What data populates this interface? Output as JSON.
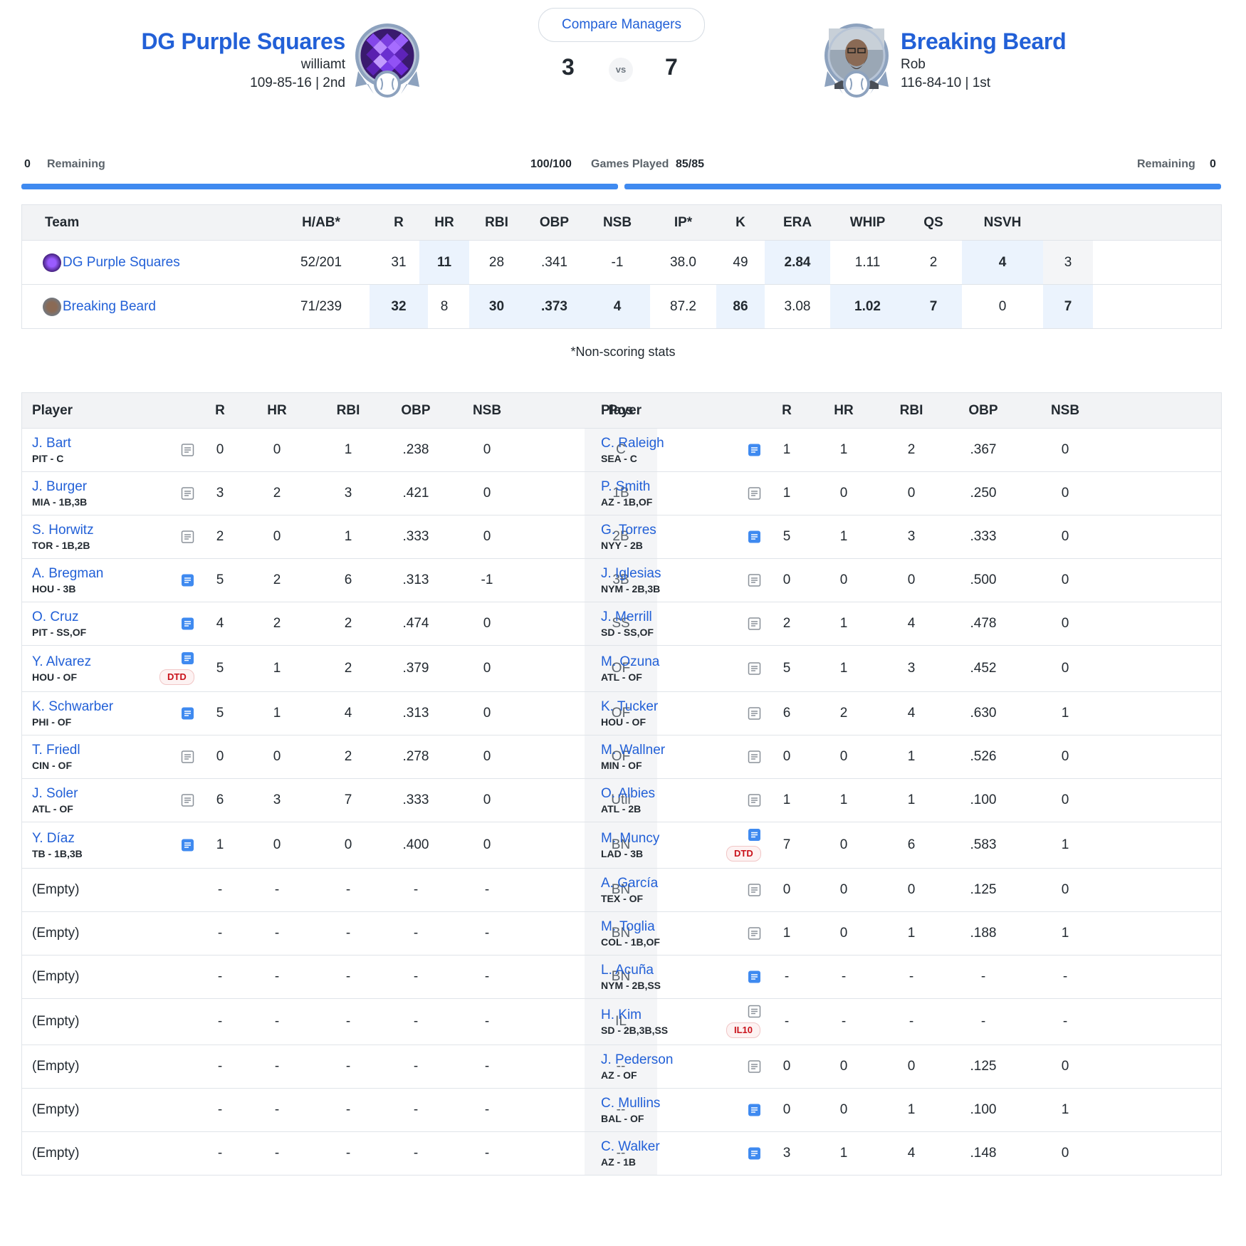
{
  "header": {
    "compare_label": "Compare Managers",
    "vs_label": "vs",
    "left": {
      "name": "DG Purple Squares",
      "manager": "williamt",
      "record": "109-85-16 | 2nd",
      "score": "3"
    },
    "right": {
      "name": "Breaking Beard",
      "manager": "Rob",
      "record": "116-84-10 | 1st",
      "score": "7"
    }
  },
  "progress": {
    "left_remaining_value": "0",
    "remaining_label": "Remaining",
    "left_played": "100/100",
    "games_played_label": "Games Played",
    "right_played": "85/85",
    "right_remaining_value": "0"
  },
  "summary": {
    "headers": [
      "Team",
      "H/AB*",
      "R",
      "HR",
      "RBI",
      "OBP",
      "NSB",
      "IP*",
      "K",
      "ERA",
      "WHIP",
      "QS",
      "NSVH",
      ""
    ],
    "rows": [
      {
        "team": "DG Purple Squares",
        "values": [
          "52/201",
          "31",
          "11",
          "28",
          ".341",
          "-1",
          "38.0",
          "49",
          "2.84",
          "1.11",
          "2",
          "4",
          "3"
        ]
      },
      {
        "team": "Breaking Beard",
        "values": [
          "71/239",
          "32",
          "8",
          "30",
          ".373",
          "4",
          "87.2",
          "86",
          "3.08",
          "1.02",
          "7",
          "0",
          "7"
        ]
      }
    ],
    "footnote": "*Non-scoring stats"
  },
  "roster": {
    "headers": {
      "player": "Player",
      "r": "R",
      "hr": "HR",
      "rbi": "RBI",
      "obp": "OBP",
      "nsb": "NSB",
      "pos": "Pos"
    },
    "empty_label": "(Empty)",
    "rows": [
      {
        "pos": "C",
        "left": {
          "name": "J. Bart",
          "meta": "PIT - C",
          "stats": [
            "0",
            "0",
            "1",
            ".238",
            "0"
          ]
        },
        "right": {
          "name": "C. Raleigh",
          "meta": "SEA - C",
          "stats": [
            "1",
            "1",
            "2",
            ".367",
            "0"
          ]
        }
      },
      {
        "pos": "1B",
        "left": {
          "name": "J. Burger",
          "meta": "MIA - 1B,3B",
          "stats": [
            "3",
            "2",
            "3",
            ".421",
            "0"
          ]
        },
        "right": {
          "name": "P. Smith",
          "meta": "AZ - 1B,OF",
          "stats": [
            "1",
            "0",
            "0",
            ".250",
            "0"
          ]
        }
      },
      {
        "pos": "2B",
        "left": {
          "name": "S. Horwitz",
          "meta": "TOR - 1B,2B",
          "stats": [
            "2",
            "0",
            "1",
            ".333",
            "0"
          ]
        },
        "right": {
          "name": "G. Torres",
          "meta": "NYY - 2B",
          "stats": [
            "5",
            "1",
            "3",
            ".333",
            "0"
          ]
        }
      },
      {
        "pos": "3B",
        "left": {
          "name": "A. Bregman",
          "meta": "HOU - 3B",
          "stats": [
            "5",
            "2",
            "6",
            ".313",
            "-1"
          ]
        },
        "right": {
          "name": "J. Iglesias",
          "meta": "NYM - 2B,3B",
          "stats": [
            "0",
            "0",
            "0",
            ".500",
            "0"
          ]
        }
      },
      {
        "pos": "SS",
        "left": {
          "name": "O. Cruz",
          "meta": "PIT - SS,OF",
          "stats": [
            "4",
            "2",
            "2",
            ".474",
            "0"
          ]
        },
        "right": {
          "name": "J. Merrill",
          "meta": "SD - SS,OF",
          "stats": [
            "2",
            "1",
            "4",
            ".478",
            "0"
          ]
        }
      },
      {
        "pos": "OF",
        "left": {
          "name": "Y. Alvarez",
          "meta": "HOU - OF",
          "tag": "DTD",
          "stats": [
            "5",
            "1",
            "2",
            ".379",
            "0"
          ]
        },
        "right": {
          "name": "M. Ozuna",
          "meta": "ATL - OF",
          "stats": [
            "5",
            "1",
            "3",
            ".452",
            "0"
          ]
        }
      },
      {
        "pos": "OF",
        "left": {
          "name": "K. Schwarber",
          "meta": "PHI - OF",
          "stats": [
            "5",
            "1",
            "4",
            ".313",
            "0"
          ]
        },
        "right": {
          "name": "K. Tucker",
          "meta": "HOU - OF",
          "stats": [
            "6",
            "2",
            "4",
            ".630",
            "1"
          ]
        }
      },
      {
        "pos": "OF",
        "left": {
          "name": "T. Friedl",
          "meta": "CIN - OF",
          "stats": [
            "0",
            "0",
            "2",
            ".278",
            "0"
          ]
        },
        "right": {
          "name": "M. Wallner",
          "meta": "MIN - OF",
          "stats": [
            "0",
            "0",
            "1",
            ".526",
            "0"
          ]
        }
      },
      {
        "pos": "Util",
        "left": {
          "name": "J. Soler",
          "meta": "ATL - OF",
          "stats": [
            "6",
            "3",
            "7",
            ".333",
            "0"
          ]
        },
        "right": {
          "name": "O. Albies",
          "meta": "ATL - 2B",
          "stats": [
            "1",
            "1",
            "1",
            ".100",
            "0"
          ]
        }
      },
      {
        "pos": "BN",
        "left": {
          "name": "Y. Díaz",
          "meta": "TB - 1B,3B",
          "stats": [
            "1",
            "0",
            "0",
            ".400",
            "0"
          ]
        },
        "right": {
          "name": "M. Muncy",
          "meta": "LAD - 3B",
          "tag": "DTD",
          "stats": [
            "7",
            "0",
            "6",
            ".583",
            "1"
          ]
        }
      },
      {
        "pos": "BN",
        "left": null,
        "right": {
          "name": "A. García",
          "meta": "TEX - OF",
          "stats": [
            "0",
            "0",
            "0",
            ".125",
            "0"
          ]
        }
      },
      {
        "pos": "BN",
        "left": null,
        "right": {
          "name": "M. Toglia",
          "meta": "COL - 1B,OF",
          "stats": [
            "1",
            "0",
            "1",
            ".188",
            "1"
          ]
        }
      },
      {
        "pos": "BN",
        "left": null,
        "right": {
          "name": "L. Acuña",
          "meta": "NYM - 2B,SS",
          "stats": [
            "-",
            "-",
            "-",
            "-",
            "-"
          ]
        }
      },
      {
        "pos": "IL",
        "left": null,
        "right": {
          "name": "H. Kim",
          "meta": "SD - 2B,3B,SS",
          "tag": "IL10",
          "stats": [
            "-",
            "-",
            "-",
            "-",
            "-"
          ]
        }
      },
      {
        "pos": "--",
        "left": null,
        "right": {
          "name": "J. Pederson",
          "meta": "AZ - OF",
          "stats": [
            "0",
            "0",
            "0",
            ".125",
            "0"
          ]
        }
      },
      {
        "pos": "--",
        "left": null,
        "right": {
          "name": "C. Mullins",
          "meta": "BAL - OF",
          "stats": [
            "0",
            "0",
            "1",
            ".100",
            "1"
          ]
        }
      },
      {
        "pos": "--",
        "left": null,
        "right": {
          "name": "C. Walker",
          "meta": "AZ - 1B",
          "stats": [
            "3",
            "1",
            "4",
            ".148",
            "0"
          ]
        }
      }
    ]
  },
  "colors": {
    "link": "#2260d7",
    "highlight": "#ebf3fd",
    "bar": "#3f8af0",
    "note_active": "#3f8af0",
    "note_inactive": "#8a9199",
    "tag": "#c9111a"
  },
  "icons": {
    "note": "player-note-icon",
    "trophy": "team-badge"
  }
}
